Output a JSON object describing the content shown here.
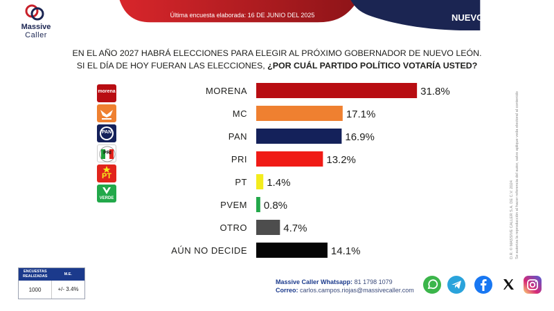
{
  "brand": {
    "name_line1": "Massive",
    "name_line2": "Caller"
  },
  "header": {
    "updated": "Última encuesta elaborada: 16 DE JUNIO DEL 2025",
    "state": "NUEVO LEÓN"
  },
  "question": {
    "line1": "EN EL AÑO 2027 HABRÁ ELECCIONES PARA ELEGIR AL PRÓXIMO GOBERNADOR DE NUEVO LEÓN.",
    "line2_plain": "SI EL DÍA DE HOY FUERAN LAS ELECCIONES, ",
    "line2_bold": "¿POR CUÁL PARTIDO POLÍTICO VOTARÍA USTED?"
  },
  "party_logos": {
    "morena": "morena",
    "pan": "PAN",
    "pri": "PRI",
    "pt": "PT",
    "verde": "VERDE"
  },
  "chart_data": {
    "type": "bar",
    "orientation": "horizontal",
    "categories": [
      "MORENA",
      "MC",
      "PAN",
      "PRI",
      "PT",
      "PVEM",
      "OTRO",
      "AÚN NO DECIDE"
    ],
    "values": [
      31.8,
      17.1,
      16.9,
      13.2,
      1.4,
      0.8,
      4.7,
      14.1
    ],
    "value_labels": [
      "31.8%",
      "17.1%",
      "16.9%",
      "13.2%",
      "1.4%",
      "0.8%",
      "4.7%",
      "14.1%"
    ],
    "colors": [
      "#b80d12",
      "#ef8030",
      "#14215a",
      "#f01b16",
      "#f3ec1d",
      "#22a84a",
      "#4d4d4d",
      "#050505"
    ],
    "xlim": [
      0,
      50
    ],
    "grid": false,
    "legend": "none"
  },
  "side_note": {
    "line1": "D.R. © MASSIVE CALLER S.A. DE C.V. 2024",
    "line2": "Se autoriza la reproducción al hacer referencia del autor, salvo aplique veda electoral al contenido"
  },
  "survey": {
    "col1_header": "ENCUESTAS REALIZADAS",
    "col2_header": "M.E.",
    "col1_value": "1000",
    "col2_value": "+/- 3.4%"
  },
  "contact": {
    "whatsapp_label": "Massive Caller Whatsapp:",
    "whatsapp_value": "81 1798 1079",
    "email_label": "Correo:",
    "email_value": "carlos.campos.riojas@massivecaller.com"
  },
  "social_icons": [
    "whatsapp-icon",
    "telegram-icon",
    "facebook-icon",
    "x-icon",
    "instagram-icon"
  ],
  "theme": {
    "red": "#a51c20",
    "navy": "#1b2552"
  }
}
